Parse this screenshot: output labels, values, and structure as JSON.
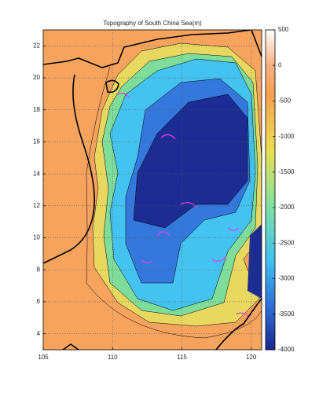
{
  "chart_data": {
    "type": "heatmap",
    "title": "Topography of South China Sea(m)",
    "xlim": [
      105,
      120.75
    ],
    "xticks": [
      105,
      110,
      115,
      120
    ],
    "ylim": [
      3,
      23
    ],
    "yticks": [
      4,
      6,
      8,
      10,
      12,
      14,
      16,
      18,
      20,
      22
    ],
    "grid": true,
    "colorbar": {
      "lim": [
        -4000,
        500
      ],
      "ticks": [
        500,
        0,
        -500,
        -1000,
        -1500,
        -2000,
        -2500,
        -3000,
        -3500,
        -4000
      ]
    }
  }
}
